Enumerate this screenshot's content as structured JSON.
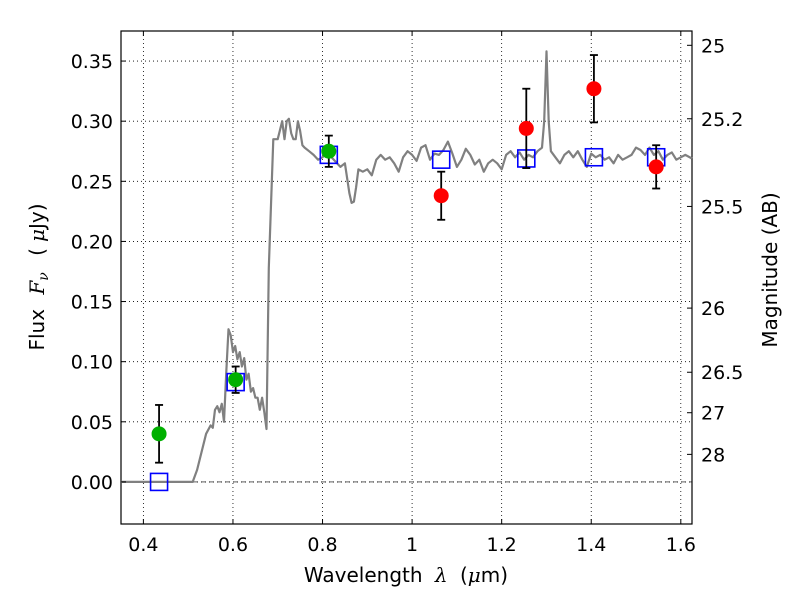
{
  "chart_data": {
    "type": "scatter",
    "title": "",
    "xlabel": {
      "prefix": "Wavelength",
      "symbol": "λ",
      "unit_open": "(",
      "unit_symbol": "μ",
      "unit_rest": "m)"
    },
    "ylabel": {
      "prefix": "Flux",
      "symbol": "F",
      "subscript": "ν",
      "unit_open": "(",
      "unit_symbol": "μ",
      "unit_rest": "Jy)"
    },
    "y2label": "Magnitude (AB)",
    "xlim": [
      0.35,
      1.625
    ],
    "ylim": [
      -0.035,
      0.375
    ],
    "grid": true,
    "x_ticks": [
      {
        "value": 0.4,
        "label": "0.4"
      },
      {
        "value": 0.6,
        "label": "0.6"
      },
      {
        "value": 0.8,
        "label": "0.8"
      },
      {
        "value": 1.0,
        "label": "1"
      },
      {
        "value": 1.2,
        "label": "1.2"
      },
      {
        "value": 1.4,
        "label": "1.4"
      },
      {
        "value": 1.6,
        "label": "1.6"
      }
    ],
    "y_ticks": [
      {
        "value": 0.0,
        "label": "0.00"
      },
      {
        "value": 0.05,
        "label": "0.05"
      },
      {
        "value": 0.1,
        "label": "0.10"
      },
      {
        "value": 0.15,
        "label": "0.15"
      },
      {
        "value": 0.2,
        "label": "0.20"
      },
      {
        "value": 0.25,
        "label": "0.25"
      },
      {
        "value": 0.3,
        "label": "0.30"
      },
      {
        "value": 0.35,
        "label": "0.35"
      }
    ],
    "y2_ticks": [
      {
        "value": 25,
        "label": "25"
      },
      {
        "value": 25.2,
        "label": "25.2"
      },
      {
        "value": 25.5,
        "label": "25.5"
      },
      {
        "value": 26,
        "label": "26"
      },
      {
        "value": 26.5,
        "label": "26.5"
      },
      {
        "value": 27,
        "label": "27"
      },
      {
        "value": 28,
        "label": "28"
      }
    ],
    "colors": {
      "spectrum": "#808080",
      "green": "#00b000",
      "red": "#ff0000",
      "model": "#0000ff",
      "errorbar": "#000000"
    },
    "spectrum": {
      "x": [
        0.35,
        0.51,
        0.52,
        0.53,
        0.54,
        0.55,
        0.555,
        0.56,
        0.565,
        0.57,
        0.575,
        0.58,
        0.585,
        0.59,
        0.595,
        0.6,
        0.605,
        0.61,
        0.615,
        0.62,
        0.625,
        0.63,
        0.635,
        0.64,
        0.645,
        0.65,
        0.655,
        0.66,
        0.665,
        0.67,
        0.675,
        0.68,
        0.69,
        0.7,
        0.71,
        0.715,
        0.72,
        0.725,
        0.73,
        0.735,
        0.74,
        0.745,
        0.75,
        0.755,
        0.76,
        0.77,
        0.78,
        0.79,
        0.8,
        0.81,
        0.82,
        0.83,
        0.84,
        0.85,
        0.86,
        0.865,
        0.87,
        0.875,
        0.88,
        0.89,
        0.9,
        0.91,
        0.92,
        0.93,
        0.94,
        0.95,
        0.96,
        0.97,
        0.98,
        0.99,
        1.0,
        1.01,
        1.02,
        1.03,
        1.04,
        1.05,
        1.06,
        1.07,
        1.08,
        1.09,
        1.1,
        1.11,
        1.12,
        1.13,
        1.14,
        1.15,
        1.16,
        1.17,
        1.18,
        1.19,
        1.2,
        1.21,
        1.22,
        1.23,
        1.24,
        1.25,
        1.26,
        1.27,
        1.28,
        1.29,
        1.295,
        1.3,
        1.305,
        1.31,
        1.32,
        1.33,
        1.34,
        1.35,
        1.36,
        1.37,
        1.38,
        1.39,
        1.4,
        1.41,
        1.42,
        1.43,
        1.44,
        1.45,
        1.46,
        1.47,
        1.48,
        1.49,
        1.5,
        1.51,
        1.52,
        1.53,
        1.54,
        1.55,
        1.56,
        1.57,
        1.58,
        1.59,
        1.6,
        1.61,
        1.625
      ],
      "y": [
        0.0,
        0.0,
        0.01,
        0.025,
        0.04,
        0.047,
        0.045,
        0.06,
        0.063,
        0.058,
        0.065,
        0.05,
        0.09,
        0.127,
        0.122,
        0.108,
        0.113,
        0.102,
        0.108,
        0.096,
        0.103,
        0.085,
        0.09,
        0.075,
        0.078,
        0.07,
        0.07,
        0.06,
        0.07,
        0.058,
        0.044,
        0.178,
        0.285,
        0.285,
        0.3,
        0.285,
        0.3,
        0.302,
        0.29,
        0.285,
        0.285,
        0.3,
        0.292,
        0.28,
        0.278,
        0.275,
        0.272,
        0.268,
        0.27,
        0.275,
        0.27,
        0.266,
        0.262,
        0.265,
        0.24,
        0.232,
        0.233,
        0.245,
        0.26,
        0.258,
        0.26,
        0.255,
        0.268,
        0.272,
        0.268,
        0.27,
        0.265,
        0.258,
        0.27,
        0.275,
        0.272,
        0.267,
        0.278,
        0.28,
        0.268,
        0.273,
        0.272,
        0.276,
        0.283,
        0.273,
        0.262,
        0.268,
        0.277,
        0.272,
        0.264,
        0.268,
        0.258,
        0.265,
        0.268,
        0.265,
        0.26,
        0.272,
        0.275,
        0.27,
        0.274,
        0.268,
        0.272,
        0.27,
        0.275,
        0.278,
        0.3,
        0.358,
        0.3,
        0.275,
        0.27,
        0.265,
        0.272,
        0.275,
        0.27,
        0.275,
        0.268,
        0.262,
        0.273,
        0.27,
        0.272,
        0.268,
        0.27,
        0.265,
        0.272,
        0.268,
        0.27,
        0.272,
        0.278,
        0.276,
        0.272,
        0.278,
        0.272,
        0.275,
        0.268,
        0.272,
        0.274,
        0.268,
        0.27,
        0.272,
        0.269
      ]
    },
    "green_points": [
      {
        "x": 0.435,
        "y": 0.04,
        "err": 0.024
      },
      {
        "x": 0.606,
        "y": 0.085,
        "err": 0.011
      },
      {
        "x": 0.814,
        "y": 0.275,
        "err": 0.013
      }
    ],
    "red_points": [
      {
        "x": 1.065,
        "y": 0.238,
        "err": 0.02
      },
      {
        "x": 1.255,
        "y": 0.294,
        "err": 0.033
      },
      {
        "x": 1.406,
        "y": 0.327,
        "err": 0.028
      },
      {
        "x": 1.545,
        "y": 0.262,
        "err": 0.018
      }
    ],
    "model_points": [
      {
        "x": 0.435,
        "y": 0.0
      },
      {
        "x": 0.606,
        "y": 0.083
      },
      {
        "x": 0.814,
        "y": 0.272
      },
      {
        "x": 1.065,
        "y": 0.268
      },
      {
        "x": 1.255,
        "y": 0.269
      },
      {
        "x": 1.406,
        "y": 0.27
      },
      {
        "x": 1.545,
        "y": 0.27
      }
    ]
  }
}
